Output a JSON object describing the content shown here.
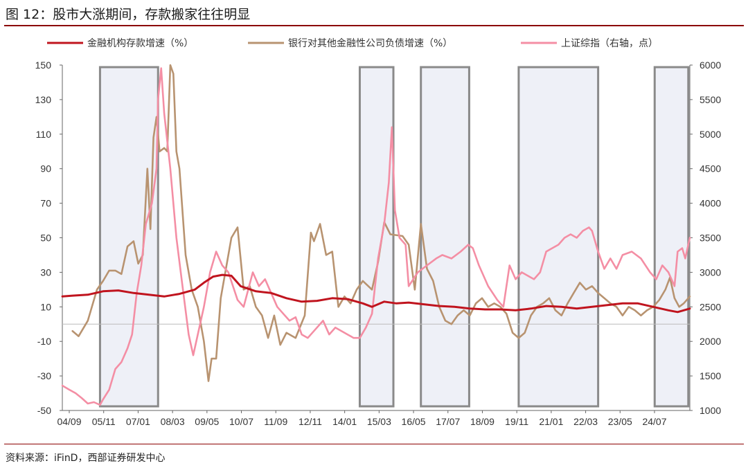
{
  "title": "图 12：股市大涨期间，存款搬家往往明显",
  "source": "资料来源：iFinD，西部证券研发中心",
  "chart_data": {
    "type": "line",
    "title": "图 12：股市大涨期间，存款搬家往往明显",
    "x_ticks": [
      "04/09",
      "05/11",
      "07/01",
      "08/03",
      "09/05",
      "10/07",
      "11/09",
      "12/11",
      "14/01",
      "15/03",
      "16/05",
      "17/07",
      "18/09",
      "19/11",
      "21/01",
      "22/03",
      "23/05",
      "24/07"
    ],
    "x_range": [
      2004.667,
      2025.2
    ],
    "ylim_left": [
      -50,
      150
    ],
    "yticks_left": [
      -50,
      -30,
      -10,
      10,
      30,
      50,
      70,
      90,
      110,
      130,
      150
    ],
    "ylim_right": [
      1000,
      6000
    ],
    "yticks_right": [
      1000,
      1500,
      2000,
      2500,
      3000,
      3500,
      4000,
      4500,
      5000,
      5500,
      6000
    ],
    "zero_line": 0,
    "shaded_periods": [
      [
        2005.9,
        2007.8
      ],
      [
        2014.4,
        2015.5
      ],
      [
        2016.4,
        2017.98
      ],
      [
        2019.6,
        2022.2
      ],
      [
        2024.05,
        2025.15
      ]
    ],
    "series": [
      {
        "name": "金融机构存款增速（%）",
        "axis": "left",
        "color": "#c0141e",
        "points": [
          [
            2004.67,
            16
          ],
          [
            2005.0,
            16.5
          ],
          [
            2005.5,
            17
          ],
          [
            2006.0,
            19
          ],
          [
            2006.5,
            19.5
          ],
          [
            2007.0,
            18
          ],
          [
            2007.5,
            17
          ],
          [
            2008.0,
            16
          ],
          [
            2008.5,
            17.5
          ],
          [
            2009.0,
            20
          ],
          [
            2009.3,
            24
          ],
          [
            2009.6,
            27.5
          ],
          [
            2009.9,
            28.5
          ],
          [
            2010.2,
            28
          ],
          [
            2010.5,
            22
          ],
          [
            2011.0,
            19
          ],
          [
            2011.5,
            18
          ],
          [
            2012.0,
            15
          ],
          [
            2012.5,
            13
          ],
          [
            2013.0,
            13.5
          ],
          [
            2013.5,
            15
          ],
          [
            2014.0,
            14.5
          ],
          [
            2014.5,
            12
          ],
          [
            2014.8,
            10
          ],
          [
            2015.2,
            13
          ],
          [
            2015.6,
            12
          ],
          [
            2016.0,
            12.5
          ],
          [
            2016.5,
            11.5
          ],
          [
            2017.0,
            10.5
          ],
          [
            2017.5,
            10
          ],
          [
            2018.0,
            9
          ],
          [
            2018.5,
            8.5
          ],
          [
            2019.0,
            8.5
          ],
          [
            2019.5,
            8
          ],
          [
            2020.0,
            9
          ],
          [
            2020.5,
            10.5
          ],
          [
            2021.0,
            10
          ],
          [
            2021.5,
            9
          ],
          [
            2022.0,
            10
          ],
          [
            2022.5,
            11
          ],
          [
            2023.0,
            12
          ],
          [
            2023.5,
            12
          ],
          [
            2024.0,
            10
          ],
          [
            2024.5,
            8
          ],
          [
            2024.8,
            7
          ],
          [
            2025.2,
            9
          ]
        ]
      },
      {
        "name": "银行对其他金融性公司负债增速（%）",
        "axis": "left",
        "color": "#b89370",
        "points": [
          [
            2005.0,
            -4
          ],
          [
            2005.2,
            -7
          ],
          [
            2005.5,
            2
          ],
          [
            2005.8,
            20
          ],
          [
            2006.0,
            25
          ],
          [
            2006.2,
            31
          ],
          [
            2006.4,
            31
          ],
          [
            2006.6,
            29
          ],
          [
            2006.8,
            45
          ],
          [
            2007.0,
            48
          ],
          [
            2007.15,
            35
          ],
          [
            2007.3,
            40
          ],
          [
            2007.45,
            90
          ],
          [
            2007.55,
            55
          ],
          [
            2007.65,
            108
          ],
          [
            2007.75,
            120
          ],
          [
            2007.85,
            100
          ],
          [
            2008.0,
            102
          ],
          [
            2008.1,
            100
          ],
          [
            2008.2,
            150
          ],
          [
            2008.3,
            145
          ],
          [
            2008.4,
            100
          ],
          [
            2008.5,
            90
          ],
          [
            2008.7,
            40
          ],
          [
            2008.9,
            20
          ],
          [
            2009.1,
            10
          ],
          [
            2009.3,
            -10
          ],
          [
            2009.45,
            -33
          ],
          [
            2009.55,
            -20
          ],
          [
            2009.7,
            -20
          ],
          [
            2009.85,
            15
          ],
          [
            2010.0,
            30
          ],
          [
            2010.2,
            50
          ],
          [
            2010.4,
            56
          ],
          [
            2010.6,
            20
          ],
          [
            2010.8,
            22
          ],
          [
            2011.0,
            10
          ],
          [
            2011.2,
            5
          ],
          [
            2011.4,
            -8
          ],
          [
            2011.6,
            5
          ],
          [
            2011.8,
            -12
          ],
          [
            2012.0,
            -5
          ],
          [
            2012.3,
            -8
          ],
          [
            2012.6,
            5
          ],
          [
            2012.8,
            53
          ],
          [
            2012.9,
            48
          ],
          [
            2013.1,
            58
          ],
          [
            2013.3,
            40
          ],
          [
            2013.5,
            42
          ],
          [
            2013.7,
            10
          ],
          [
            2013.9,
            16
          ],
          [
            2014.1,
            12
          ],
          [
            2014.3,
            20
          ],
          [
            2014.5,
            25
          ],
          [
            2014.8,
            20
          ],
          [
            2015.0,
            36
          ],
          [
            2015.2,
            59
          ],
          [
            2015.4,
            52
          ],
          [
            2015.8,
            51
          ],
          [
            2016.0,
            46
          ],
          [
            2016.2,
            20
          ],
          [
            2016.4,
            58
          ],
          [
            2016.6,
            32
          ],
          [
            2016.8,
            25
          ],
          [
            2017.0,
            10
          ],
          [
            2017.2,
            2
          ],
          [
            2017.4,
            0
          ],
          [
            2017.6,
            5
          ],
          [
            2017.8,
            8
          ],
          [
            2018.0,
            5
          ],
          [
            2018.2,
            12
          ],
          [
            2018.4,
            15
          ],
          [
            2018.6,
            10
          ],
          [
            2018.8,
            12
          ],
          [
            2019.0,
            10
          ],
          [
            2019.2,
            6
          ],
          [
            2019.4,
            -5
          ],
          [
            2019.6,
            -8
          ],
          [
            2019.8,
            -5
          ],
          [
            2020.0,
            5
          ],
          [
            2020.2,
            10
          ],
          [
            2020.4,
            12
          ],
          [
            2020.6,
            15
          ],
          [
            2020.8,
            8
          ],
          [
            2021.0,
            5
          ],
          [
            2021.2,
            12
          ],
          [
            2021.4,
            18
          ],
          [
            2021.6,
            24
          ],
          [
            2021.8,
            20
          ],
          [
            2022.0,
            22
          ],
          [
            2022.2,
            18
          ],
          [
            2022.4,
            15
          ],
          [
            2022.6,
            12
          ],
          [
            2022.8,
            10
          ],
          [
            2023.0,
            5
          ],
          [
            2023.2,
            10
          ],
          [
            2023.4,
            8
          ],
          [
            2023.6,
            5
          ],
          [
            2023.8,
            8
          ],
          [
            2024.0,
            10
          ],
          [
            2024.2,
            14
          ],
          [
            2024.4,
            20
          ],
          [
            2024.55,
            27
          ],
          [
            2024.7,
            15
          ],
          [
            2024.85,
            10
          ],
          [
            2025.0,
            12
          ],
          [
            2025.2,
            16
          ]
        ]
      },
      {
        "name": "上证综指（右轴，点）",
        "axis": "right",
        "color": "#f48ea4",
        "points": [
          [
            2004.67,
            1360
          ],
          [
            2004.9,
            1300
          ],
          [
            2005.1,
            1250
          ],
          [
            2005.3,
            1180
          ],
          [
            2005.5,
            1100
          ],
          [
            2005.7,
            1120
          ],
          [
            2005.9,
            1080
          ],
          [
            2006.0,
            1160
          ],
          [
            2006.2,
            1300
          ],
          [
            2006.4,
            1600
          ],
          [
            2006.6,
            1700
          ],
          [
            2006.8,
            1900
          ],
          [
            2006.95,
            2100
          ],
          [
            2007.1,
            2700
          ],
          [
            2007.25,
            3100
          ],
          [
            2007.4,
            3700
          ],
          [
            2007.6,
            4000
          ],
          [
            2007.75,
            4500
          ],
          [
            2007.8,
            5500
          ],
          [
            2007.9,
            5954
          ],
          [
            2008.0,
            5300
          ],
          [
            2008.2,
            4500
          ],
          [
            2008.4,
            3500
          ],
          [
            2008.6,
            2800
          ],
          [
            2008.8,
            2100
          ],
          [
            2008.95,
            1800
          ],
          [
            2009.1,
            2100
          ],
          [
            2009.3,
            2500
          ],
          [
            2009.5,
            3000
          ],
          [
            2009.7,
            3300
          ],
          [
            2009.9,
            3100
          ],
          [
            2010.1,
            3000
          ],
          [
            2010.4,
            2600
          ],
          [
            2010.6,
            2500
          ],
          [
            2010.9,
            3000
          ],
          [
            2011.1,
            2800
          ],
          [
            2011.3,
            2900
          ],
          [
            2011.5,
            2700
          ],
          [
            2011.7,
            2500
          ],
          [
            2011.9,
            2400
          ],
          [
            2012.1,
            2300
          ],
          [
            2012.3,
            2350
          ],
          [
            2012.5,
            2100
          ],
          [
            2012.7,
            2050
          ],
          [
            2013.0,
            2200
          ],
          [
            2013.2,
            2300
          ],
          [
            2013.4,
            2100
          ],
          [
            2013.6,
            2200
          ],
          [
            2013.8,
            2150
          ],
          [
            2014.0,
            2100
          ],
          [
            2014.2,
            2050
          ],
          [
            2014.4,
            2050
          ],
          [
            2014.6,
            2200
          ],
          [
            2014.8,
            2400
          ],
          [
            2015.0,
            3200
          ],
          [
            2015.2,
            3700
          ],
          [
            2015.35,
            4300
          ],
          [
            2015.45,
            5100
          ],
          [
            2015.55,
            3900
          ],
          [
            2015.7,
            3500
          ],
          [
            2015.9,
            3400
          ],
          [
            2016.0,
            2800
          ],
          [
            2016.3,
            3000
          ],
          [
            2016.6,
            3100
          ],
          [
            2016.9,
            3200
          ],
          [
            2017.1,
            3250
          ],
          [
            2017.4,
            3200
          ],
          [
            2017.7,
            3300
          ],
          [
            2017.95,
            3400
          ],
          [
            2018.1,
            3350
          ],
          [
            2018.3,
            3100
          ],
          [
            2018.6,
            2800
          ],
          [
            2018.9,
            2600
          ],
          [
            2019.1,
            2500
          ],
          [
            2019.3,
            3100
          ],
          [
            2019.5,
            2900
          ],
          [
            2019.7,
            3000
          ],
          [
            2019.9,
            2950
          ],
          [
            2020.1,
            2900
          ],
          [
            2020.3,
            3000
          ],
          [
            2020.5,
            3300
          ],
          [
            2020.7,
            3350
          ],
          [
            2020.9,
            3400
          ],
          [
            2021.1,
            3500
          ],
          [
            2021.3,
            3550
          ],
          [
            2021.5,
            3500
          ],
          [
            2021.7,
            3600
          ],
          [
            2021.9,
            3650
          ],
          [
            2022.0,
            3600
          ],
          [
            2022.2,
            3300
          ],
          [
            2022.4,
            3050
          ],
          [
            2022.6,
            3200
          ],
          [
            2022.8,
            3050
          ],
          [
            2023.0,
            3250
          ],
          [
            2023.3,
            3300
          ],
          [
            2023.6,
            3200
          ],
          [
            2023.9,
            3000
          ],
          [
            2024.1,
            2900
          ],
          [
            2024.3,
            3100
          ],
          [
            2024.5,
            3000
          ],
          [
            2024.7,
            2800
          ],
          [
            2024.8,
            3300
          ],
          [
            2024.95,
            3350
          ],
          [
            2025.05,
            3200
          ],
          [
            2025.2,
            3500
          ]
        ]
      }
    ]
  }
}
